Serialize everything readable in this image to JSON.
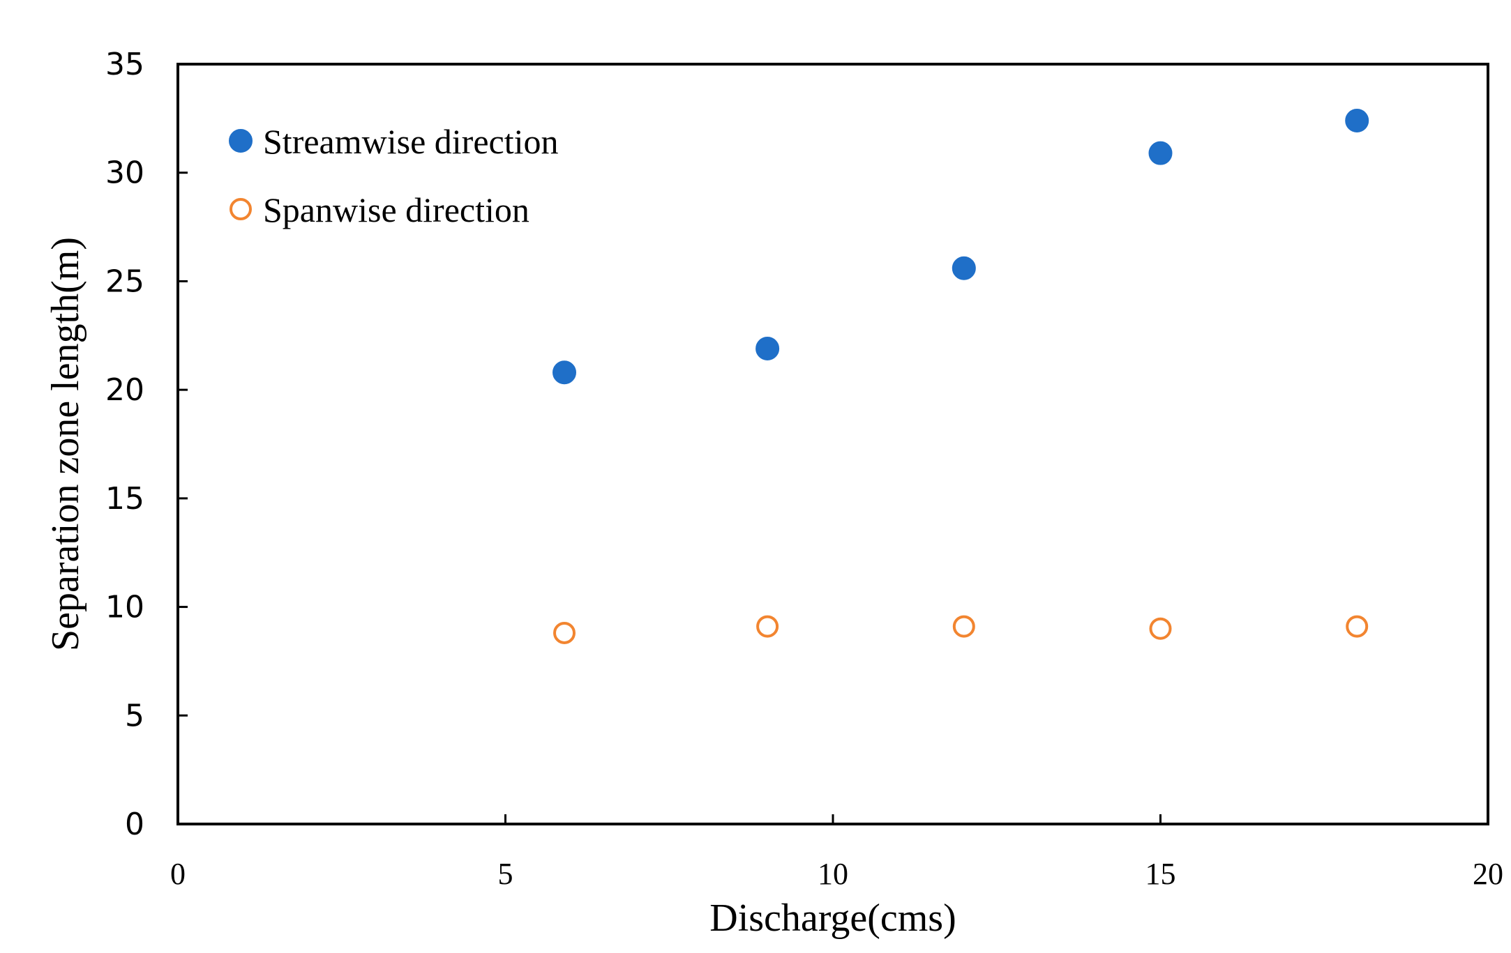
{
  "chart_data": {
    "type": "scatter",
    "title": "",
    "xlabel": "Discharge(cms)",
    "ylabel": "Separation zone length(m)",
    "xlim": [
      0,
      20
    ],
    "ylim": [
      0,
      35
    ],
    "xticks": [
      0,
      5,
      10,
      15,
      20
    ],
    "yticks": [
      0,
      5,
      10,
      15,
      20,
      25,
      30,
      35
    ],
    "grid": false,
    "legend_position": "top-left",
    "series": [
      {
        "name": "Streamwise direction",
        "marker": "filled-circle",
        "color": "#1f6fc8",
        "x": [
          5.9,
          9.0,
          12.0,
          15.0,
          18.0
        ],
        "y": [
          20.8,
          21.9,
          25.6,
          30.9,
          32.4
        ]
      },
      {
        "name": "Spanwise direction",
        "marker": "hollow-circle",
        "color": "#f28530",
        "x": [
          5.9,
          9.0,
          12.0,
          15.0,
          18.0
        ],
        "y": [
          8.8,
          9.1,
          9.1,
          9.0,
          9.1
        ]
      }
    ]
  }
}
